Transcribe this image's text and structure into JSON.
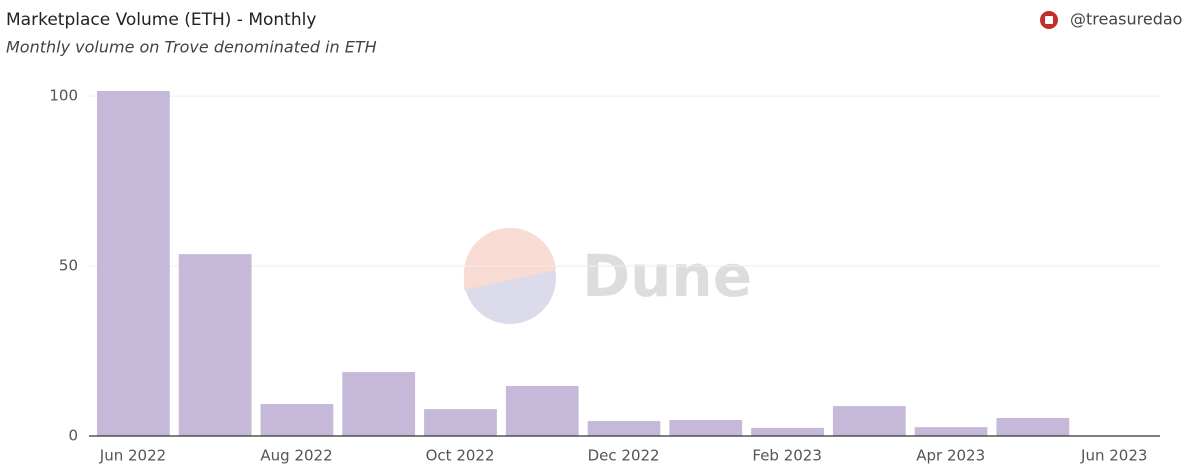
{
  "chart_data": {
    "type": "bar",
    "title": "Marketplace Volume (ETH) - Monthly",
    "subtitle": "Monthly volume on Trove denominated in ETH",
    "author": "@treasuredao",
    "watermark": "Dune",
    "categories": [
      "Jun 2022",
      null,
      "Aug 2022",
      null,
      "Oct 2022",
      null,
      "Dec 2022",
      null,
      "Feb 2023",
      null,
      "Apr 2023",
      null,
      "Jun 2023"
    ],
    "values": [
      101.5,
      53.5,
      9.4,
      18.8,
      7.9,
      14.7,
      4.4,
      4.7,
      2.4,
      8.8,
      2.6,
      5.3,
      null
    ],
    "color": "#c5b8d9",
    "ylim": [
      0,
      102
    ],
    "yticks": [
      0,
      50,
      100
    ],
    "grid": true
  }
}
